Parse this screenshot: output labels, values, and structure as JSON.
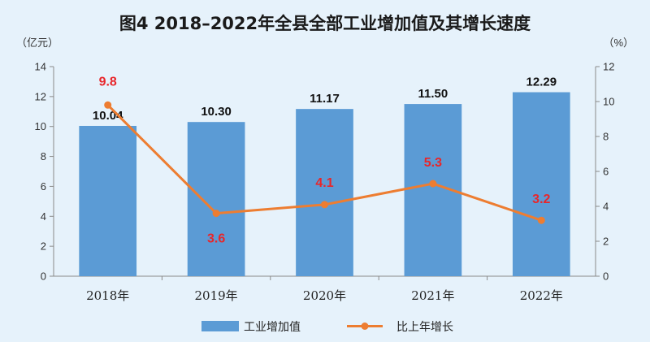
{
  "chart_data": {
    "type": "bar+line",
    "title": "图4  2018–2022年全县全部工业增加值及其增长速度",
    "y_left_unit": "（亿元）",
    "y_right_unit": "（%）",
    "categories": [
      "2018年",
      "2019年",
      "2020年",
      "2021年",
      "2022年"
    ],
    "ylim_left": [
      0,
      14
    ],
    "ylim_right": [
      0,
      12
    ],
    "y_left_ticks": [
      "0",
      "2",
      "4",
      "6",
      "8",
      "10",
      "12",
      "14"
    ],
    "y_right_ticks": [
      "0",
      "2",
      "4",
      "6",
      "8",
      "10",
      "12"
    ],
    "grid": false,
    "legend_position": "bottom",
    "series": [
      {
        "name": "工业增加值",
        "kind": "bar",
        "axis": "left",
        "color": "#5b9bd5",
        "values": [
          10.04,
          10.3,
          11.17,
          11.5,
          12.29
        ],
        "labels": [
          "10.04",
          "10.30",
          "11.17",
          "11.50",
          "12.29"
        ]
      },
      {
        "name": "比上年增长",
        "kind": "line",
        "axis": "right",
        "color": "#ed7d31",
        "label_color": "#e8262a",
        "values": [
          9.8,
          3.6,
          4.1,
          5.3,
          3.2
        ],
        "labels": [
          "9.8",
          "3.6",
          "4.1",
          "5.3",
          "3.2"
        ]
      }
    ]
  }
}
